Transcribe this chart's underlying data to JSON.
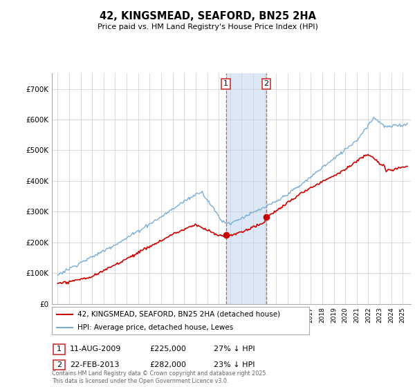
{
  "title": "42, KINGSMEAD, SEAFORD, BN25 2HA",
  "subtitle": "Price paid vs. HM Land Registry's House Price Index (HPI)",
  "property_label": "42, KINGSMEAD, SEAFORD, BN25 2HA (detached house)",
  "hpi_label": "HPI: Average price, detached house, Lewes",
  "property_color": "#cc0000",
  "hpi_color": "#7aadd4",
  "hpi_fill_color": "#d8e8f5",
  "shade_color": "#dce8f5",
  "transaction1_date": "11-AUG-2009",
  "transaction1_price": "£225,000",
  "transaction1_hpi": "27% ↓ HPI",
  "transaction2_date": "22-FEB-2013",
  "transaction2_price": "£282,000",
  "transaction2_hpi": "23% ↓ HPI",
  "shade_x1": 2009.62,
  "shade_x2": 2013.13,
  "marker1_x": 2009.62,
  "marker1_y": 225000,
  "marker2_x": 2013.13,
  "marker2_y": 282000,
  "ylim": [
    0,
    750000
  ],
  "xlim": [
    1994.5,
    2025.7
  ],
  "ylabel_ticks": [
    0,
    100000,
    200000,
    300000,
    400000,
    500000,
    600000,
    700000
  ],
  "ylabel_labels": [
    "£0",
    "£100K",
    "£200K",
    "£300K",
    "£400K",
    "£500K",
    "£600K",
    "£700K"
  ],
  "footer": "Contains HM Land Registry data © Crown copyright and database right 2025.\nThis data is licensed under the Open Government Licence v3.0."
}
